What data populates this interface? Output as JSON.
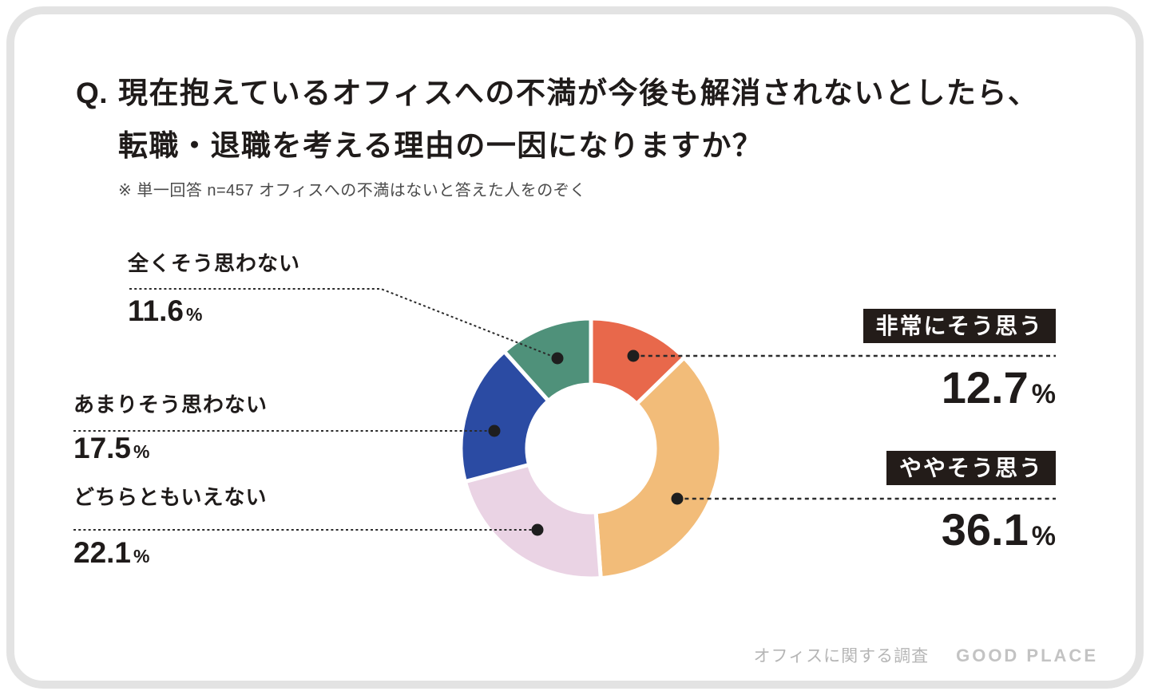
{
  "page": {
    "question_prefix": "Q.",
    "title_line1": "現在抱えているオフィスへの不満が今後も解消されないとしたら、",
    "title_line2": "転職・退職を考える理由の一因になりますか？",
    "note": "※ 単一回答 n=457 オフィスへの不満はないと答えた人をのぞく"
  },
  "chart_data": {
    "type": "pie",
    "subtype": "donut",
    "title": "現在抱えているオフィスへの不満が今後も解消されないとしたら、転職・退職を考える理由の一因になりますか？",
    "note": "単一回答 n=457 オフィスへの不満はないと答えた人をのぞく",
    "unit": "%",
    "start_angle_deg": -90,
    "direction": "clockwise",
    "slices": [
      {
        "label": "非常にそう思う",
        "value": 12.7,
        "color": "#E8684B",
        "callout_style": "badge"
      },
      {
        "label": "ややそう思う",
        "value": 36.1,
        "color": "#F2BC79",
        "callout_style": "badge"
      },
      {
        "label": "どちらともいえない",
        "value": 22.1,
        "color": "#EAD3E4",
        "callout_style": "plain"
      },
      {
        "label": "あまりそう思わない",
        "value": 17.5,
        "color": "#2B4BA3",
        "callout_style": "plain"
      },
      {
        "label": "全くそう思わない",
        "value": 11.6,
        "color": "#4F917A",
        "callout_style": "plain"
      }
    ]
  },
  "footer": {
    "survey_name": "オフィスに関する調査",
    "brand": "GOOD PLACE"
  },
  "colors": {
    "badge_bg": "#231c19",
    "text": "#1f1b1a",
    "leader_line": "#2b2b2b",
    "leader_dot": "#1e1e1e",
    "frame_border": "#e3e3e3",
    "note_text": "#4b4b4b",
    "footer_text": "#b5b5b5",
    "slice_gap": "#ffffff"
  }
}
